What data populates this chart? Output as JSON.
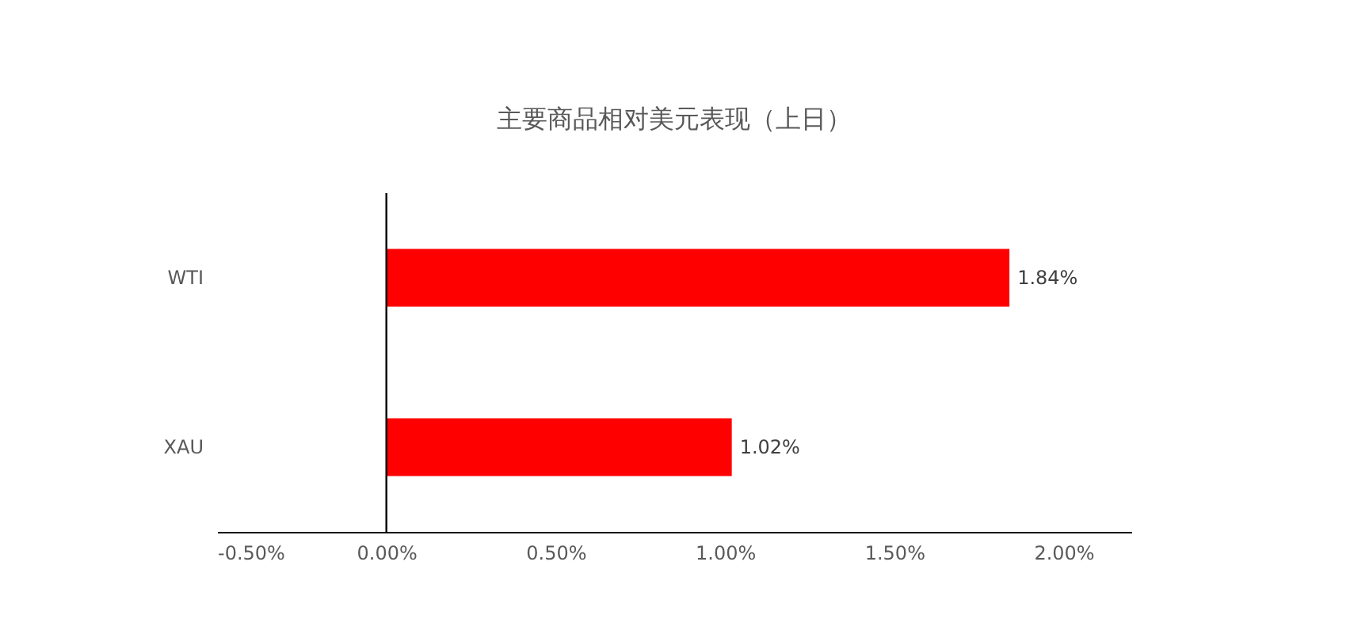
{
  "chart_data": {
    "type": "bar",
    "orientation": "horizontal",
    "title": "主要商品相对美元表现（上日）",
    "categories": [
      "WTI",
      "XAU"
    ],
    "values": [
      1.84,
      1.02
    ],
    "color": "#ff0000",
    "value_labels": [
      "1.84%",
      "1.02%"
    ],
    "xlim": [
      -0.5,
      2.2
    ],
    "xticks": [
      {
        "value": -0.5,
        "label": "-0.50%"
      },
      {
        "value": 0,
        "label": "0.00%"
      },
      {
        "value": 0.5,
        "label": "0.50%"
      },
      {
        "value": 1,
        "label": "1.00%"
      },
      {
        "value": 1.5,
        "label": "1.50%"
      },
      {
        "value": 2,
        "label": "2.00%"
      }
    ]
  }
}
